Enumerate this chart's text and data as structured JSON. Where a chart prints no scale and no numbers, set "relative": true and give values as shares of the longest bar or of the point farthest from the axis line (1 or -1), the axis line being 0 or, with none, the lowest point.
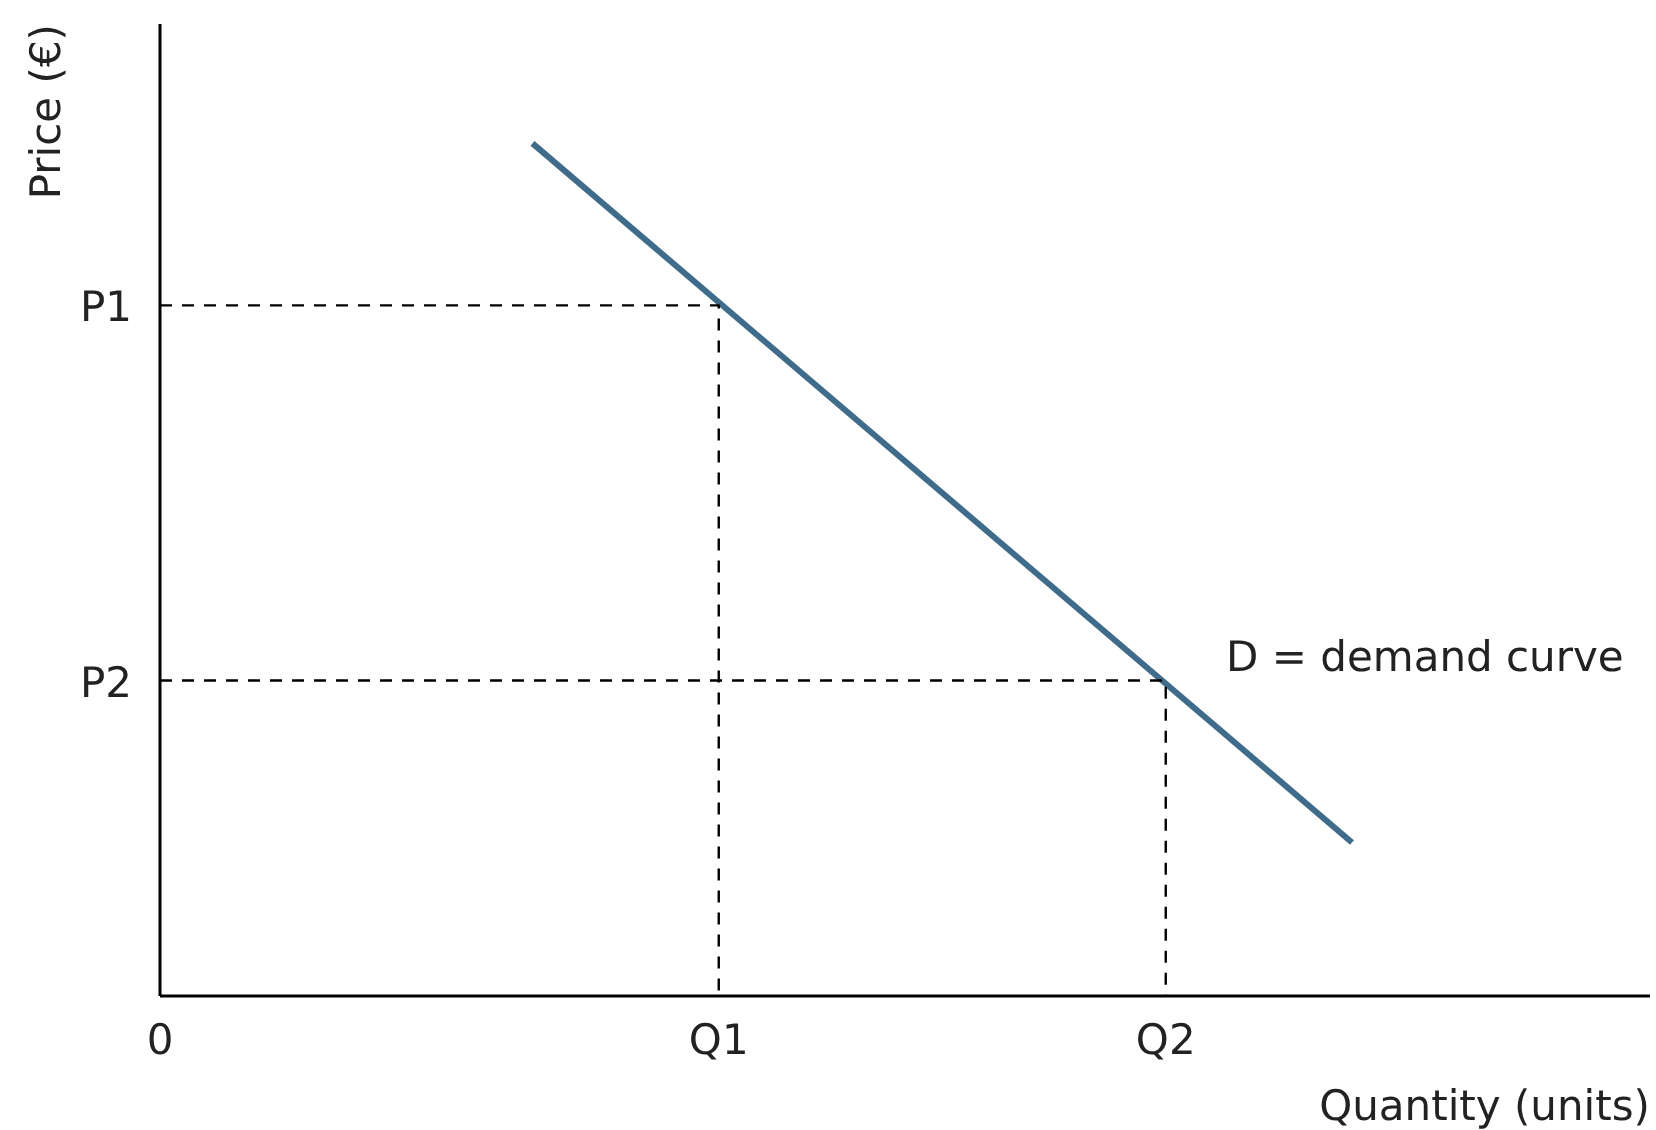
{
  "chart_data": {
    "type": "line",
    "relative": true,
    "xlabel": "Quantity (units)",
    "ylabel": "Price (€)",
    "categories": [
      "0",
      null,
      null,
      null,
      null,
      null,
      null,
      null,
      null,
      null,
      null,
      null,
      null,
      null,
      null,
      "Q1",
      null,
      null,
      null,
      null,
      null,
      null,
      null,
      null,
      null,
      null,
      null,
      "Q2",
      null,
      null,
      null,
      null,
      null,
      null,
      null,
      null,
      null,
      null,
      null,
      null,
      null
    ],
    "grid": false,
    "marker": "none",
    "series": [
      {
        "name": "D = demand curve",
        "color": "#3f6c8a",
        "line_style": "solid",
        "values": [
          null,
          null,
          null,
          null,
          null,
          null,
          null,
          null,
          null,
          null,
          1,
          null,
          null,
          null,
          null,
          null,
          null,
          null,
          null,
          null,
          null,
          null,
          null,
          null,
          null,
          null,
          null,
          null,
          null,
          null,
          null,
          null,
          0.18,
          null,
          null,
          null,
          null,
          null,
          null,
          null,
          null
        ]
      },
      {
        "name": "P1",
        "color": "#000000",
        "line_style": "dashed",
        "x": [
          "0",
          "Q1",
          "Q1"
        ],
        "values": [
          0.81,
          0.81,
          0
        ]
      },
      {
        "name": "P2",
        "color": "#000000",
        "line_style": "dashed",
        "x": [
          "0",
          "Q2",
          "Q2"
        ],
        "values": [
          0.37,
          0.37,
          0
        ]
      }
    ]
  }
}
